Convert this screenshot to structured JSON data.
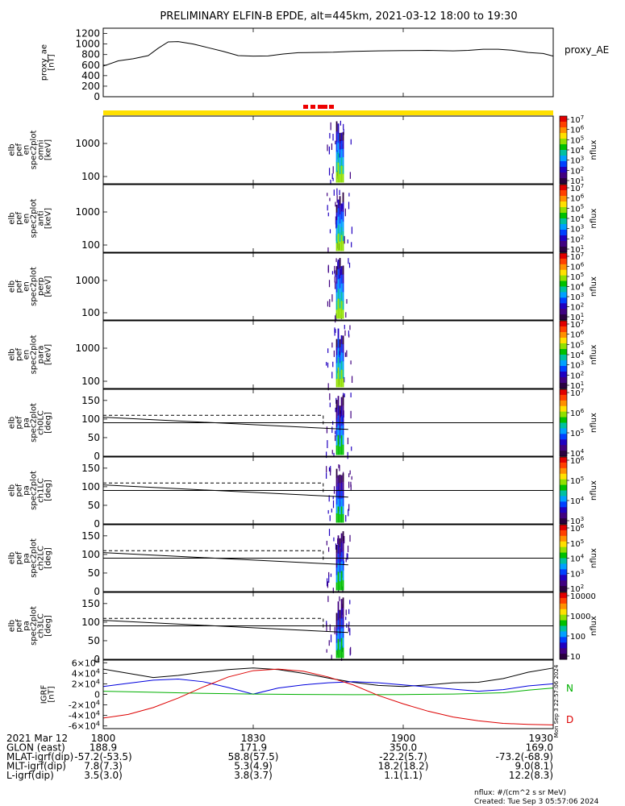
{
  "title": "PRELIMINARY ELFIN-B EPDE, alt=445km, 2021-03-12 18:00 to 19:30",
  "chart_data": {
    "type": "line",
    "title": "PRELIMINARY ELFIN-B EPDE, alt=445km, 2021-03-12 18:00 to 19:30",
    "time_range_min": [
      0,
      90
    ],
    "x_ticks": [
      {
        "t": 0,
        "label": "1800"
      },
      {
        "t": 30,
        "label": "1830"
      },
      {
        "t": 60,
        "label": "1900"
      },
      {
        "t": 90,
        "label": "1930"
      }
    ],
    "panels": [
      {
        "id": "ae",
        "ylabel": [
          "proxy_ae",
          "[nT]"
        ],
        "right_label": "proxy_AE",
        "ylim": [
          0,
          1300
        ],
        "ytick_labels": [
          "0",
          "200",
          "400",
          "600",
          "800",
          "1000",
          "1200"
        ],
        "series": [
          {
            "name": "proxy_AE",
            "t": [
              0,
              3,
              6,
              9,
              11,
              13,
              15,
              18,
              21,
              24,
              27,
              30,
              33,
              36,
              39,
              42,
              46,
              50,
              55,
              60,
              65,
              70,
              73,
              76,
              79,
              82,
              85,
              88,
              90
            ],
            "v": [
              580,
              680,
              720,
              780,
              920,
              1040,
              1045,
              1000,
              930,
              860,
              780,
              770,
              775,
              810,
              835,
              840,
              845,
              860,
              870,
              875,
              880,
              870,
              880,
              900,
              900,
              880,
              840,
              820,
              770
            ]
          }
        ]
      },
      {
        "id": "omni",
        "ylabel": [
          "elb",
          "pef",
          "en",
          "spec2plot",
          "omni",
          "[keV]"
        ],
        "ytick_labels": [
          "100",
          "1000"
        ],
        "colorbar": {
          "label": "nflux",
          "ticks": [
            "10^1",
            "10^2",
            "10^3",
            "10^4",
            "10^5",
            "10^6",
            "10^7"
          ]
        }
      },
      {
        "id": "anti",
        "ylabel": [
          "elb",
          "pef",
          "en",
          "spec2plot",
          "anti",
          "[keV]"
        ],
        "ytick_labels": [
          "100",
          "1000"
        ],
        "colorbar": {
          "label": "nflux",
          "ticks": [
            "10^1",
            "10^2",
            "10^3",
            "10^4",
            "10^5",
            "10^6",
            "10^7"
          ]
        }
      },
      {
        "id": "perp",
        "ylabel": [
          "elb",
          "pef",
          "en",
          "spec2plot",
          "perp",
          "[keV]"
        ],
        "ytick_labels": [
          "100",
          "1000"
        ],
        "colorbar": {
          "label": "nflux",
          "ticks": [
            "10^1",
            "10^2",
            "10^3",
            "10^4",
            "10^5",
            "10^6",
            "10^7"
          ]
        }
      },
      {
        "id": "para",
        "ylabel": [
          "elb",
          "pef",
          "en",
          "spec2plot",
          "para",
          "[keV]"
        ],
        "ytick_labels": [
          "100",
          "1000"
        ],
        "colorbar": {
          "label": "nflux",
          "ticks": [
            "10^1",
            "10^2",
            "10^3",
            "10^4",
            "10^5",
            "10^6",
            "10^7"
          ]
        }
      },
      {
        "id": "ch0",
        "ylabel": [
          "elb",
          "pef",
          "pa",
          "spec2plot",
          "ch0LC",
          "[deg]"
        ],
        "ylim": [
          0,
          180
        ],
        "ytick_labels": [
          "0",
          "50",
          "100",
          "150"
        ],
        "colorbar": {
          "label": "nflux",
          "ticks": [
            "10^4",
            "10^5",
            "10^6",
            "10^7"
          ]
        }
      },
      {
        "id": "ch1",
        "ylabel": [
          "elb",
          "pef",
          "pa",
          "spec2plot",
          "ch1LC",
          "[deg]"
        ],
        "ylim": [
          0,
          180
        ],
        "ytick_labels": [
          "0",
          "50",
          "100",
          "150"
        ],
        "colorbar": {
          "label": "nflux",
          "ticks": [
            "10^3",
            "10^4",
            "10^5",
            "10^6"
          ]
        }
      },
      {
        "id": "ch2",
        "ylabel": [
          "elb",
          "pef",
          "pa",
          "spec2plot",
          "ch2LC",
          "[deg]"
        ],
        "ylim": [
          0,
          180
        ],
        "ytick_labels": [
          "0",
          "50",
          "100",
          "150"
        ],
        "colorbar": {
          "label": "nflux",
          "ticks": [
            "10^2",
            "10^3",
            "10^4",
            "10^5",
            "10^6"
          ]
        }
      },
      {
        "id": "ch3",
        "ylabel": [
          "elb",
          "pef",
          "pa",
          "spec2plot",
          "ch3LC",
          "[deg]"
        ],
        "ylim": [
          0,
          180
        ],
        "ytick_labels": [
          "0",
          "50",
          "100",
          "150"
        ],
        "colorbar": {
          "label": "nflux",
          "ticks": [
            "10",
            "100",
            "1000",
            "10000"
          ]
        }
      },
      {
        "id": "igrf",
        "ylabel": [
          "IGRF",
          "[nT]"
        ],
        "ylim": [
          -65000,
          65000
        ],
        "ytick_labels": [
          "-6×10^4",
          "-4×10^4",
          "-2×10^4",
          "0",
          "2×10^4",
          "4×10^4",
          "6×10^4"
        ],
        "series": [
          {
            "name": "black",
            "color": "#000000",
            "t": [
              0,
              5,
              10,
              15,
              20,
              25,
              30,
              35,
              40,
              45,
              50,
              55,
              60,
              65,
              70,
              75,
              80,
              85,
              90
            ],
            "v": [
              48000,
              40000,
              32000,
              36000,
              42000,
              47000,
              50000,
              47000,
              40000,
              31000,
              23000,
              17000,
              15000,
              18000,
              22000,
              23000,
              30000,
              42000,
              50000
            ]
          },
          {
            "name": "blue",
            "color": "#0000dd",
            "t": [
              0,
              5,
              10,
              15,
              20,
              25,
              30,
              35,
              40,
              45,
              50,
              55,
              60,
              65,
              70,
              75,
              80,
              85,
              90
            ],
            "v": [
              15000,
              21000,
              27000,
              29000,
              24000,
              13000,
              500,
              12000,
              18000,
              22000,
              24000,
              22000,
              18000,
              14000,
              10000,
              6000,
              9000,
              16000,
              20000
            ]
          },
          {
            "name": "green",
            "color": "#00b000",
            "t": [
              0,
              10,
              20,
              30,
              40,
              50,
              60,
              70,
              80,
              85,
              90
            ],
            "v": [
              6000,
              4000,
              2000,
              500,
              -200,
              -500,
              -300,
              500,
              3000,
              8000,
              12000
            ]
          },
          {
            "name": "red",
            "color": "#dd0000",
            "t": [
              0,
              5,
              10,
              15,
              20,
              25,
              30,
              35,
              40,
              45,
              50,
              55,
              60,
              65,
              70,
              75,
              80,
              85,
              90
            ],
            "v": [
              -45000,
              -38000,
              -25000,
              -7000,
              14000,
              33000,
              45000,
              48000,
              44000,
              33000,
              18000,
              -2000,
              -18000,
              -32000,
              -43000,
              -50000,
              -55000,
              -57000,
              -58000
            ]
          }
        ],
        "right_labels": {
          "N": "N",
          "D": "D"
        }
      }
    ]
  },
  "orbit_table": {
    "rows": [
      {
        "label": "2021 Mar 12",
        "values": [
          "1800",
          "1830",
          "1900",
          "1930"
        ]
      },
      {
        "label": "GLON (east)",
        "values": [
          "188.9",
          "171.9",
          "350.0",
          "169.0"
        ]
      },
      {
        "label": "MLAT-igrf(dip)",
        "values": [
          "-57.2(-53.5)",
          "58.8(57.5)",
          "-22.2(5.7)",
          "-73.2(-68.9)"
        ]
      },
      {
        "label": "MLT-igrf(dip)",
        "values": [
          "7.8(7.3)",
          "5.3(4.9)",
          "18.2(18.2)",
          "9.0(8.1)"
        ]
      },
      {
        "label": "L-igrf(dip)",
        "values": [
          "3.5(3.0)",
          "3.8(3.7)",
          "1.1(1.1)",
          "12.2(8.3)"
        ]
      }
    ]
  },
  "footer": {
    "units": "nflux: #/(cm^2 s sr MeV)",
    "created": "Created: Tue Sep  3 05:57:06 2024",
    "side_stamp": "Mon Sep  3 22:57:06 2024"
  }
}
